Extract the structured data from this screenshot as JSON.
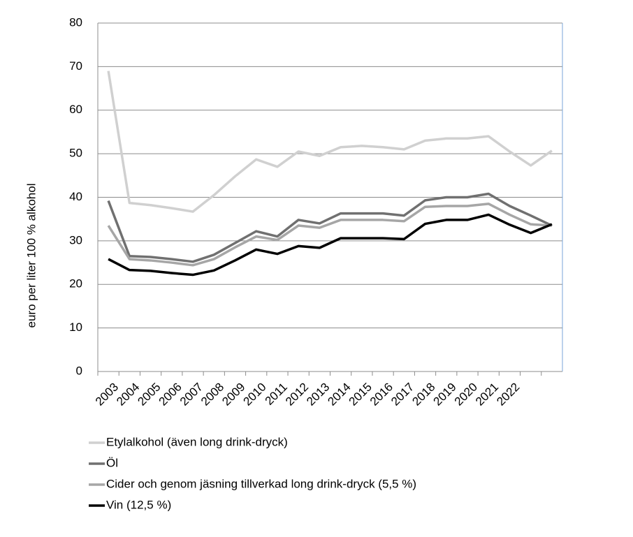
{
  "chart_data": {
    "type": "line",
    "y_label": "euro per liter 100 % alkohol",
    "categories": [
      "2003",
      "2004",
      "2005",
      "2006",
      "2007",
      "2008",
      "2009",
      "2010",
      "2011",
      "2012",
      "2013",
      "2014",
      "2015",
      "2016",
      "2017",
      "2018",
      "2019",
      "2020",
      "2021",
      "2022",
      null,
      null
    ],
    "series": [
      {
        "name": "Etylalkohol (även long drink-dryck)",
        "color": "#d0d0d0",
        "values": [
          69,
          38.7,
          38.2,
          37.5,
          36.7,
          40.5,
          44.8,
          48.7,
          47,
          50.5,
          49.5,
          51.5,
          51.8,
          51.5,
          51,
          53,
          53.5,
          53.5,
          54,
          50.5,
          47.3,
          50.7
        ]
      },
      {
        "name": "Öl",
        "color": "#707070",
        "values": [
          39.2,
          26.5,
          26.3,
          25.8,
          25.2,
          26.8,
          29.5,
          32.2,
          31,
          34.8,
          34,
          36.3,
          36.3,
          36.3,
          35.8,
          39.3,
          40,
          40,
          40.8,
          38,
          35.8,
          33.5
        ]
      },
      {
        "name": "Cider och genom jäsning tillverkad long drink-dryck (5,5 %)",
        "color": "#a6a6a6",
        "values": [
          33.5,
          25.8,
          25.5,
          25,
          24.4,
          25.8,
          28.5,
          31,
          30.2,
          33.5,
          33,
          34.8,
          34.8,
          34.8,
          34.5,
          37.8,
          38,
          38,
          38.5,
          36,
          33.8,
          33.5
        ]
      },
      {
        "name": "Vin (12,5 %)",
        "color": "#000000",
        "values": [
          25.8,
          23.3,
          23.1,
          22.6,
          22.2,
          23.2,
          25.5,
          28,
          27,
          28.8,
          28.4,
          30.6,
          30.6,
          30.6,
          30.4,
          33.9,
          34.8,
          34.8,
          36,
          33.7,
          31.8,
          33.8
        ]
      }
    ],
    "ylim": [
      0,
      80
    ],
    "yticks": [
      0,
      10,
      20,
      30,
      40,
      50,
      60,
      70,
      80
    ],
    "grid": true,
    "legend": "bottom"
  }
}
